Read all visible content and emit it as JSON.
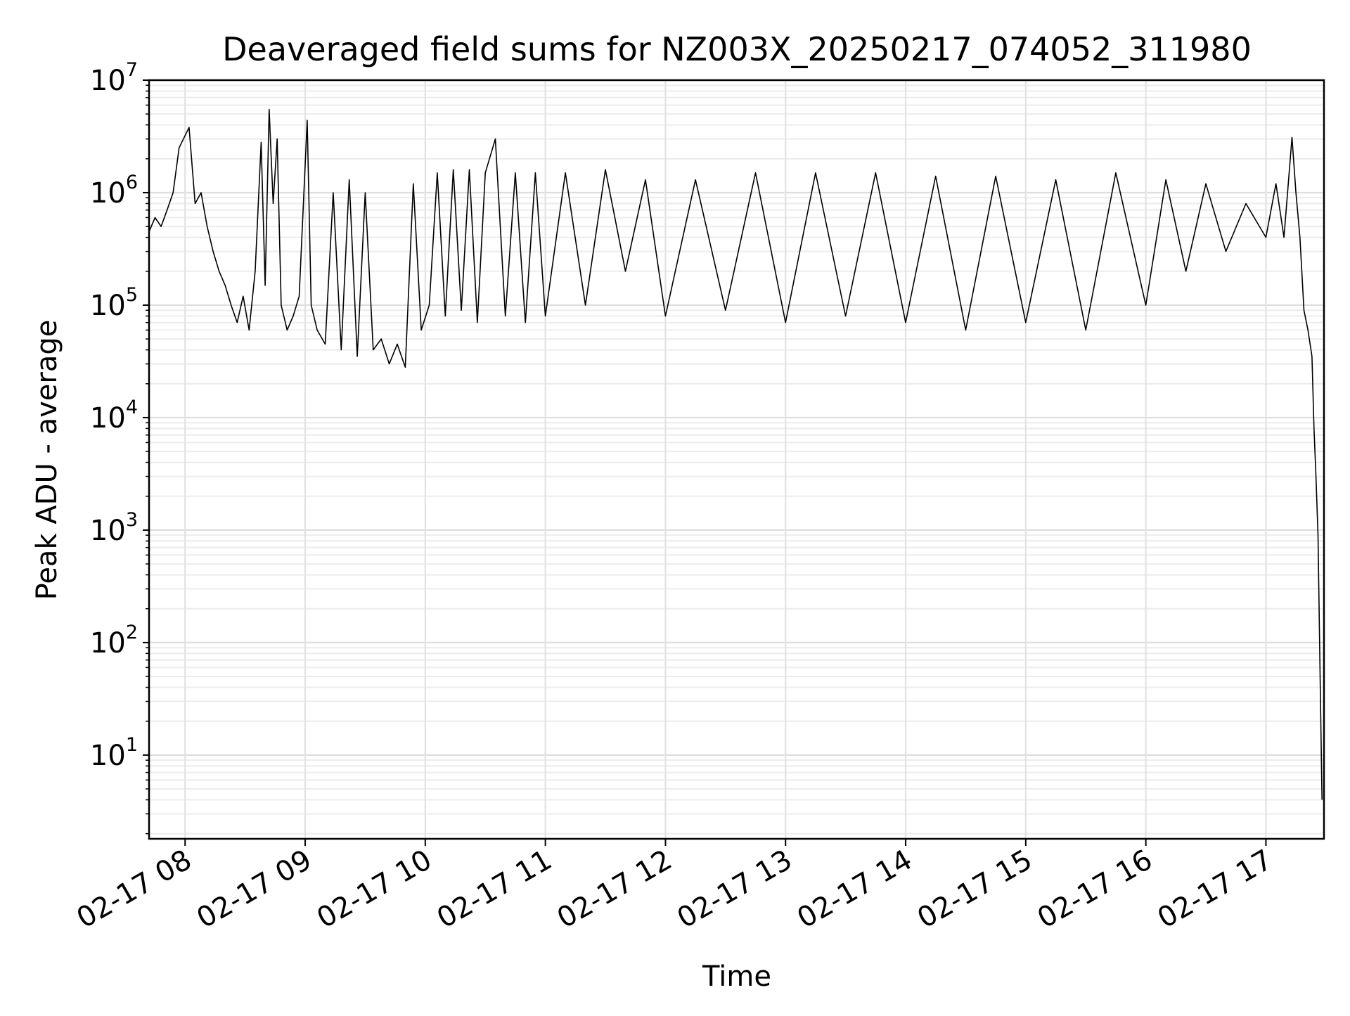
{
  "chart_data": {
    "type": "line",
    "title": "Deaveraged field sums for NZ003X_20250217_074052_311980",
    "xlabel": "Time",
    "ylabel": "Peak ADU - average",
    "yscale": "log",
    "ylim": [
      1.8,
      10000000
    ],
    "xlim": [
      "2025-02-17 07:42",
      "2025-02-17 17:29"
    ],
    "grid": "major and minor, light gray",
    "line_color": "#000000",
    "x_ticks": [
      {
        "value": "2025-02-17 08:00",
        "label": "02-17 08"
      },
      {
        "value": "2025-02-17 09:00",
        "label": "02-17 09"
      },
      {
        "value": "2025-02-17 10:00",
        "label": "02-17 10"
      },
      {
        "value": "2025-02-17 11:00",
        "label": "02-17 11"
      },
      {
        "value": "2025-02-17 12:00",
        "label": "02-17 12"
      },
      {
        "value": "2025-02-17 13:00",
        "label": "02-17 13"
      },
      {
        "value": "2025-02-17 14:00",
        "label": "02-17 14"
      },
      {
        "value": "2025-02-17 15:00",
        "label": "02-17 15"
      },
      {
        "value": "2025-02-17 16:00",
        "label": "02-17 16"
      },
      {
        "value": "2025-02-17 17:00",
        "label": "02-17 17"
      }
    ],
    "y_ticks": [
      {
        "value": 10,
        "base": "10",
        "exp": "1"
      },
      {
        "value": 100,
        "base": "10",
        "exp": "2"
      },
      {
        "value": 1000,
        "base": "10",
        "exp": "3"
      },
      {
        "value": 10000,
        "base": "10",
        "exp": "4"
      },
      {
        "value": 100000,
        "base": "10",
        "exp": "5"
      },
      {
        "value": 1000000,
        "base": "10",
        "exp": "6"
      },
      {
        "value": 10000000,
        "base": "10",
        "exp": "7"
      }
    ],
    "series": [
      {
        "points": [
          [
            "2025-02-17 07:42",
            450000
          ],
          [
            "2025-02-17 07:45",
            600000
          ],
          [
            "2025-02-17 07:48",
            500000
          ],
          [
            "2025-02-17 07:51",
            700000
          ],
          [
            "2025-02-17 07:54",
            1000000
          ],
          [
            "2025-02-17 07:57",
            2500000
          ],
          [
            "2025-02-17 08:02",
            3800000
          ],
          [
            "2025-02-17 08:05",
            800000
          ],
          [
            "2025-02-17 08:08",
            1000000
          ],
          [
            "2025-02-17 08:11",
            500000
          ],
          [
            "2025-02-17 08:14",
            300000
          ],
          [
            "2025-02-17 08:17",
            200000
          ],
          [
            "2025-02-17 08:20",
            150000
          ],
          [
            "2025-02-17 08:23",
            100000
          ],
          [
            "2025-02-17 08:26",
            70000
          ],
          [
            "2025-02-17 08:29",
            120000
          ],
          [
            "2025-02-17 08:32",
            60000
          ],
          [
            "2025-02-17 08:35",
            200000
          ],
          [
            "2025-02-17 08:38",
            2800000
          ],
          [
            "2025-02-17 08:40",
            150000
          ],
          [
            "2025-02-17 08:42",
            5500000
          ],
          [
            "2025-02-17 08:44",
            800000
          ],
          [
            "2025-02-17 08:46",
            3000000
          ],
          [
            "2025-02-17 08:48",
            100000
          ],
          [
            "2025-02-17 08:51",
            60000
          ],
          [
            "2025-02-17 08:54",
            80000
          ],
          [
            "2025-02-17 08:57",
            120000
          ],
          [
            "2025-02-17 09:01",
            4400000
          ],
          [
            "2025-02-17 09:03",
            100000
          ],
          [
            "2025-02-17 09:06",
            60000
          ],
          [
            "2025-02-17 09:10",
            45000
          ],
          [
            "2025-02-17 09:14",
            1000000
          ],
          [
            "2025-02-17 09:18",
            40000
          ],
          [
            "2025-02-17 09:22",
            1300000
          ],
          [
            "2025-02-17 09:26",
            35000
          ],
          [
            "2025-02-17 09:30",
            1000000
          ],
          [
            "2025-02-17 09:34",
            40000
          ],
          [
            "2025-02-17 09:38",
            50000
          ],
          [
            "2025-02-17 09:42",
            30000
          ],
          [
            "2025-02-17 09:46",
            45000
          ],
          [
            "2025-02-17 09:50",
            28000
          ],
          [
            "2025-02-17 09:54",
            1200000
          ],
          [
            "2025-02-17 09:58",
            60000
          ],
          [
            "2025-02-17 10:02",
            100000
          ],
          [
            "2025-02-17 10:06",
            1500000
          ],
          [
            "2025-02-17 10:10",
            80000
          ],
          [
            "2025-02-17 10:14",
            1600000
          ],
          [
            "2025-02-17 10:18",
            90000
          ],
          [
            "2025-02-17 10:22",
            1600000
          ],
          [
            "2025-02-17 10:26",
            70000
          ],
          [
            "2025-02-17 10:30",
            1500000
          ],
          [
            "2025-02-17 10:35",
            3000000
          ],
          [
            "2025-02-17 10:40",
            80000
          ],
          [
            "2025-02-17 10:45",
            1500000
          ],
          [
            "2025-02-17 10:50",
            70000
          ],
          [
            "2025-02-17 10:55",
            1500000
          ],
          [
            "2025-02-17 11:00",
            80000
          ],
          [
            "2025-02-17 11:10",
            1500000
          ],
          [
            "2025-02-17 11:20",
            100000
          ],
          [
            "2025-02-17 11:30",
            1600000
          ],
          [
            "2025-02-17 11:40",
            200000
          ],
          [
            "2025-02-17 11:50",
            1300000
          ],
          [
            "2025-02-17 12:00",
            80000
          ],
          [
            "2025-02-17 12:15",
            1300000
          ],
          [
            "2025-02-17 12:30",
            90000
          ],
          [
            "2025-02-17 12:45",
            1500000
          ],
          [
            "2025-02-17 13:00",
            70000
          ],
          [
            "2025-02-17 13:15",
            1500000
          ],
          [
            "2025-02-17 13:30",
            80000
          ],
          [
            "2025-02-17 13:45",
            1500000
          ],
          [
            "2025-02-17 14:00",
            70000
          ],
          [
            "2025-02-17 14:15",
            1400000
          ],
          [
            "2025-02-17 14:30",
            60000
          ],
          [
            "2025-02-17 14:45",
            1400000
          ],
          [
            "2025-02-17 15:00",
            70000
          ],
          [
            "2025-02-17 15:15",
            1300000
          ],
          [
            "2025-02-17 15:30",
            60000
          ],
          [
            "2025-02-17 15:45",
            1500000
          ],
          [
            "2025-02-17 16:00",
            100000
          ],
          [
            "2025-02-17 16:10",
            1300000
          ],
          [
            "2025-02-17 16:20",
            200000
          ],
          [
            "2025-02-17 16:30",
            1200000
          ],
          [
            "2025-02-17 16:40",
            300000
          ],
          [
            "2025-02-17 16:50",
            800000
          ],
          [
            "2025-02-17 17:00",
            400000
          ],
          [
            "2025-02-17 17:05",
            1200000
          ],
          [
            "2025-02-17 17:09",
            400000
          ],
          [
            "2025-02-17 17:13",
            3100000
          ],
          [
            "2025-02-17 17:15",
            1000000
          ],
          [
            "2025-02-17 17:17",
            400000
          ],
          [
            "2025-02-17 17:19",
            90000
          ],
          [
            "2025-02-17 17:21",
            60000
          ],
          [
            "2025-02-17 17:23",
            35000
          ],
          [
            "2025-02-17 17:24",
            8000
          ],
          [
            "2025-02-17 17:25",
            3000
          ],
          [
            "2025-02-17 17:26",
            900
          ],
          [
            "2025-02-17 17:27",
            60
          ],
          [
            "2025-02-17 17:28",
            4
          ]
        ]
      }
    ]
  }
}
